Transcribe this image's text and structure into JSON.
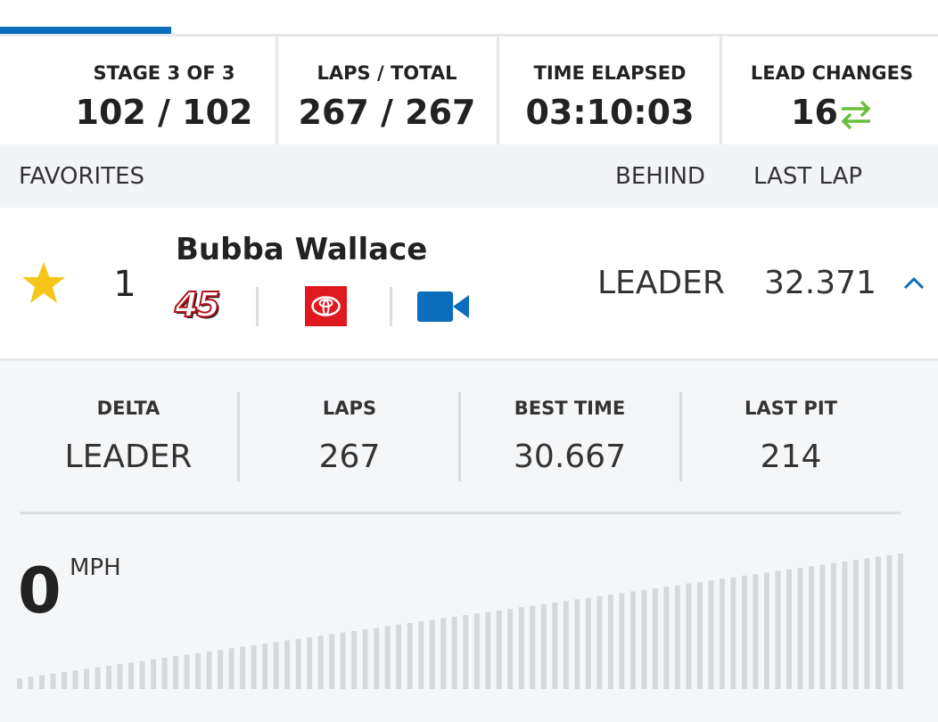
{
  "header": {
    "stats": [
      {
        "label": "STAGE 3 OF 3",
        "value": "102 / 102"
      },
      {
        "label": "LAPS / TOTAL",
        "value": "267 / 267"
      },
      {
        "label": "TIME ELAPSED",
        "value": "03:10:03"
      },
      {
        "label": "LEAD CHANGES",
        "value": "16"
      }
    ]
  },
  "table": {
    "columns": [
      "FAVORITES",
      "BEHIND",
      "LAST LAP"
    ],
    "row": {
      "position": "1",
      "name": "Bubba Wallace",
      "car_number": "45",
      "behind": "LEADER",
      "last_lap": "32.371"
    }
  },
  "details": {
    "stats": [
      {
        "label": "DELTA",
        "value": "LEADER"
      },
      {
        "label": "LAPS",
        "value": "267"
      },
      {
        "label": "BEST TIME",
        "value": "30.667"
      },
      {
        "label": "LAST PIT",
        "value": "214"
      }
    ],
    "speed": {
      "value": "0",
      "unit": "MPH"
    }
  }
}
